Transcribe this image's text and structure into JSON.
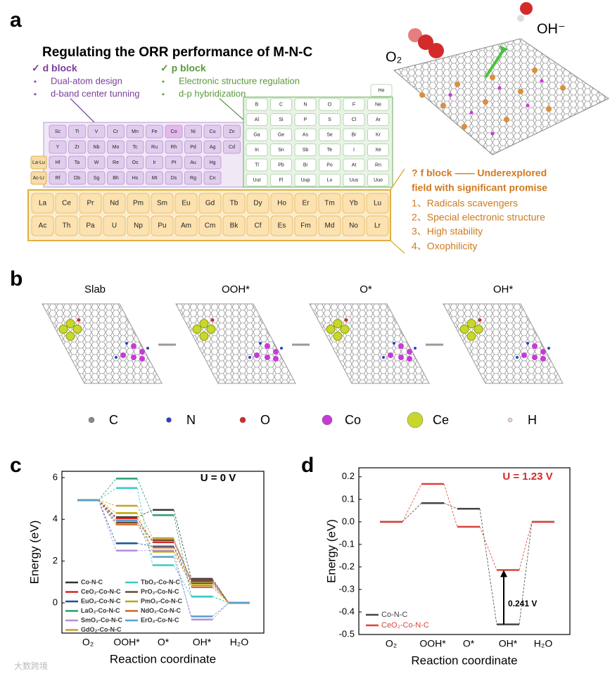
{
  "panel_labels": [
    "a",
    "b",
    "c",
    "d"
  ],
  "panel_a": {
    "title": "Regulating the ORR performance of M-N-C",
    "d_block": {
      "heading": "✓ d block",
      "items": [
        "Dual-atom design",
        "d-band center tunning"
      ]
    },
    "p_block": {
      "heading": "✓ p block",
      "items": [
        "Electronic structure regulation",
        "d-p hybridization"
      ]
    },
    "f_block": {
      "heading": [
        "? f block —— Underexplored",
        "field with significant promise"
      ],
      "items": [
        "1、Radicals scavengers",
        "2、Special electronic structure",
        "3、High stability",
        "4、Oxophilicity"
      ]
    },
    "molecules": [
      "O₂",
      "OH⁻"
    ],
    "d_table": [
      [
        "Sc",
        "Ti",
        "V",
        "Cr",
        "Mn",
        "Fe",
        "Co",
        "Ni",
        "Cu",
        "Zn"
      ],
      [
        "Y",
        "Zr",
        "Nb",
        "Mo",
        "Tc",
        "Ru",
        "Rh",
        "Pd",
        "Ag",
        "Cd"
      ],
      [
        "Hf",
        "Ta",
        "W",
        "Re",
        "Os",
        "Ir",
        "Pt",
        "Au",
        "Hg"
      ],
      [
        "Rf",
        "Db",
        "Sg",
        "Bh",
        "Hs",
        "Mt",
        "Ds",
        "Rg",
        "Cn"
      ]
    ],
    "series_labels": [
      "La-Lu",
      "Ac-Lr"
    ],
    "p_table": [
      [
        "He"
      ],
      [
        "B",
        "C",
        "N",
        "O",
        "F",
        "Ne"
      ],
      [
        "Al",
        "Si",
        "P",
        "S",
        "Cl",
        "Ar"
      ],
      [
        "Ga",
        "Ge",
        "As",
        "Se",
        "Br",
        "Kr"
      ],
      [
        "In",
        "Sn",
        "Sb",
        "Te",
        "I",
        "Xe"
      ],
      [
        "Tl",
        "Pb",
        "Bi",
        "Po",
        "At",
        "Rn"
      ],
      [
        "Uut",
        "Fl",
        "Uup",
        "Lv",
        "Uus",
        "Uuo"
      ]
    ],
    "f_table": [
      [
        "La",
        "Ce",
        "Pr",
        "Nd",
        "Pm",
        "Sm",
        "Eu",
        "Gd",
        "Tb",
        "Dy",
        "Ho",
        "Er",
        "Tm",
        "Yb",
        "Lu"
      ],
      [
        "Ac",
        "Th",
        "Pa",
        "U",
        "Np",
        "Pu",
        "Am",
        "Cm",
        "Bk",
        "Cf",
        "Es",
        "Fm",
        "Md",
        "No",
        "Lr"
      ]
    ]
  },
  "panel_b": {
    "steps": [
      "Slab",
      "OOH*",
      "O*",
      "OH*"
    ],
    "atoms": [
      {
        "name": "C",
        "color": "#888888"
      },
      {
        "name": "N",
        "color": "#2a3fc8"
      },
      {
        "name": "O",
        "color": "#d42a2a"
      },
      {
        "name": "Co",
        "color": "#c83ad8"
      },
      {
        "name": "Ce",
        "color": "#c8d82a"
      },
      {
        "name": "H",
        "color": "#f0d8d8"
      }
    ]
  },
  "chart_data": [
    {
      "type": "energy_levels",
      "annotation": "U = 0 V",
      "y_label": "Energy (eV)",
      "x_label": "Reaction coordinate",
      "categories": [
        "O₂",
        "OOH*",
        "O*",
        "OH*",
        "H₂O"
      ],
      "ylim": [
        -1.45,
        6.3
      ],
      "yticks": [
        0,
        2,
        4,
        6
      ],
      "series": [
        {
          "name": "Co-N-C",
          "color": "#333333",
          "values": [
            4.92,
            4.1,
            4.45,
            1.15,
            0
          ]
        },
        {
          "name": "CeO₂-Co-N-C",
          "color": "#d62728",
          "values": [
            4.92,
            4.05,
            2.9,
            1.1,
            0
          ]
        },
        {
          "name": "EuO₂-Co-N-C",
          "color": "#1f4e99",
          "values": [
            4.92,
            2.85,
            2.7,
            0.95,
            0
          ]
        },
        {
          "name": "LaO₂-Co-N-C",
          "color": "#2a9d6f",
          "values": [
            4.92,
            5.95,
            4.2,
            0.3,
            0
          ]
        },
        {
          "name": "SmO₂-Co-N-C",
          "color": "#b48fd8",
          "values": [
            4.92,
            2.5,
            2.5,
            -0.8,
            0
          ]
        },
        {
          "name": "GdO₂-Co-N-C",
          "color": "#c8a02a",
          "values": [
            4.92,
            4.65,
            3.1,
            1.0,
            0
          ]
        },
        {
          "name": "TbO₂-Co-N-C",
          "color": "#3cc8c8",
          "values": [
            4.92,
            5.5,
            1.8,
            0.3,
            0
          ]
        },
        {
          "name": "PrO₂-Co-N-C",
          "color": "#6b4a3a",
          "values": [
            4.92,
            3.85,
            3.0,
            1.05,
            0
          ]
        },
        {
          "name": "PmO₂-Co-N-C",
          "color": "#b8a800",
          "values": [
            4.92,
            4.3,
            2.45,
            0.85,
            0
          ]
        },
        {
          "name": "NdO₂-Co-N-C",
          "color": "#d2691e",
          "values": [
            4.92,
            3.75,
            2.65,
            0.75,
            0
          ]
        },
        {
          "name": "ErO₂-Co-N-C",
          "color": "#5aa0d0",
          "values": [
            4.92,
            3.95,
            2.2,
            -0.65,
            0
          ]
        }
      ]
    },
    {
      "type": "energy_levels",
      "annotation": "U = 1.23 V",
      "gap_label": "0.241 V",
      "y_label": "Energy (eV)",
      "x_label": "Reaction coordinate",
      "categories": [
        "O₂",
        "OOH*",
        "O*",
        "OH*",
        "H₂O"
      ],
      "ylim": [
        -0.5,
        0.24
      ],
      "yticks": [
        -0.5,
        -0.4,
        -0.3,
        -0.2,
        -0.1,
        {
          "value": 0,
          "label": "0.0"
        },
        0.1,
        0.2
      ],
      "series": [
        {
          "name": "Co-N-C",
          "color": "#444444",
          "values": [
            0,
            0.083,
            0.058,
            -0.455,
            0
          ]
        },
        {
          "name": "CeO₂-Co-N-C",
          "color": "#d9443a",
          "values": [
            0,
            0.168,
            -0.022,
            -0.214,
            0
          ]
        }
      ]
    }
  ],
  "watermark": "大数跨境"
}
